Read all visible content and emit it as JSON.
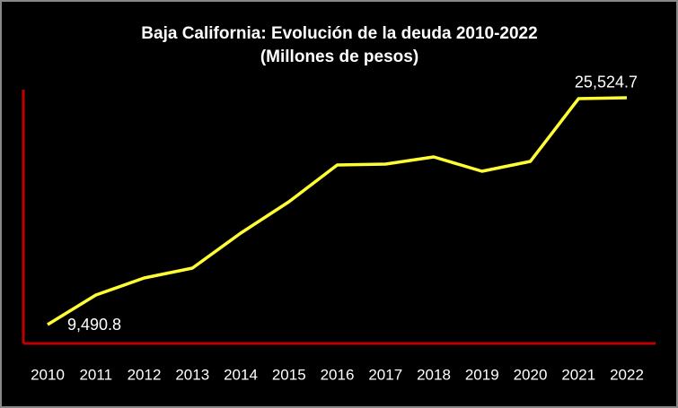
{
  "chart_data": {
    "type": "line",
    "title": "Baja California: Evolución de la deuda 2010-2022",
    "subtitle": "(Millones de pesos)",
    "categories": [
      "2010",
      "2011",
      "2012",
      "2013",
      "2014",
      "2015",
      "2016",
      "2017",
      "2018",
      "2019",
      "2020",
      "2021",
      "2022"
    ],
    "values": [
      9490.8,
      11582,
      12786,
      13483,
      15955,
      18173,
      20771,
      20835,
      21342,
      20328,
      21024,
      25461,
      25524.7
    ],
    "value_labels": [
      "9,490.8",
      null,
      null,
      null,
      null,
      null,
      null,
      null,
      null,
      null,
      null,
      null,
      "25,524.7"
    ],
    "color": "#ffff33",
    "axis_color": "#c00000",
    "ylim": [
      8160,
      26095
    ]
  }
}
